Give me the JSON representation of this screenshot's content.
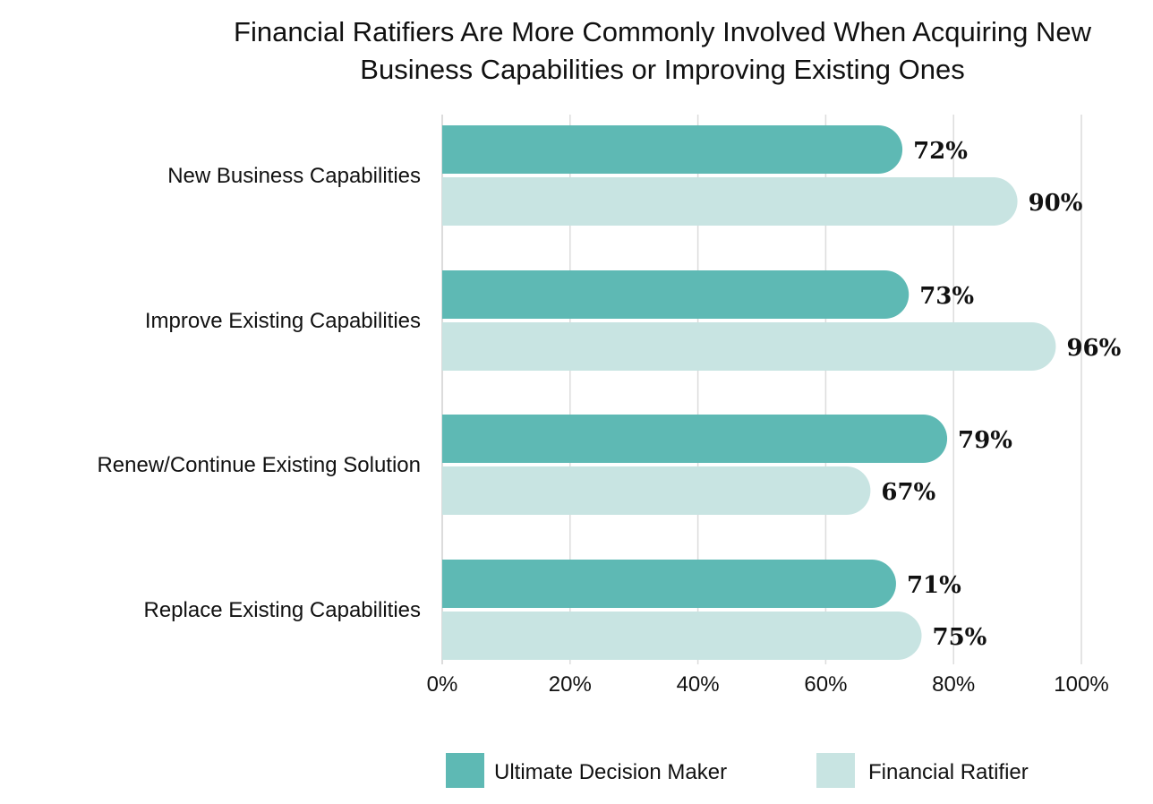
{
  "chart_data": {
    "type": "bar",
    "orientation": "horizontal",
    "title": "Financial Ratifiers Are More Commonly Involved When Acquiring New Business Capabilities or Improving Existing Ones",
    "title_lines": [
      "Financial Ratifiers Are More Commonly Involved When Acquiring New",
      "Business Capabilities or Improving Existing Ones"
    ],
    "categories": [
      "New Business Capabilities",
      "Improve Existing Capabilities",
      "Renew/Continue Existing Solution",
      "Replace Existing Capabilities"
    ],
    "series": [
      {
        "name": "Ultimate Decision Maker",
        "values": [
          72,
          73,
          79,
          71
        ],
        "labels": [
          "72%",
          "73%",
          "79%",
          "71%"
        ],
        "color": "#5eb9b4"
      },
      {
        "name": "Financial Ratifier",
        "values": [
          90,
          96,
          67,
          75
        ],
        "labels": [
          "90%",
          "96%",
          "67%",
          "75%"
        ],
        "color": "#c8e4e2"
      }
    ],
    "xlim": [
      0,
      100
    ],
    "ticks": [
      0,
      20,
      40,
      60,
      80,
      100
    ],
    "tick_labels": [
      "0%",
      "20%",
      "40%",
      "60%",
      "80%",
      "100%"
    ],
    "xlabel": "",
    "ylabel": "",
    "grid": true,
    "legend_position": "bottom"
  }
}
